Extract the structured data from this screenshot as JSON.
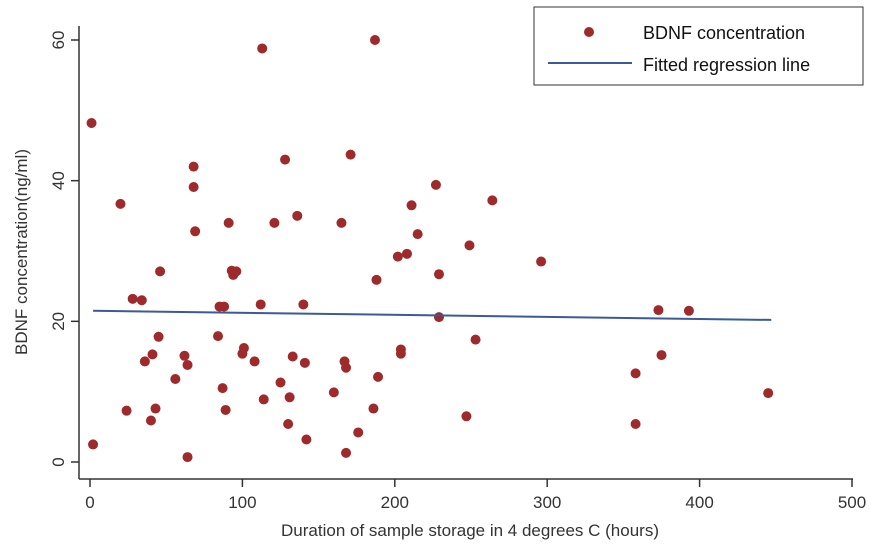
{
  "chart_data": {
    "type": "scatter",
    "xlabel": "Duration of sample storage in 4 degrees C (hours)",
    "ylabel": "BDNF concentration(ng/ml)",
    "xlim": [
      0,
      500
    ],
    "ylim": [
      0,
      60
    ],
    "xticks": [
      "0",
      "100",
      "200",
      "300",
      "400",
      "500"
    ],
    "yticks": [
      "0",
      "20",
      "40",
      "60"
    ],
    "grid": false,
    "legend_position": "top-right",
    "colors": {
      "points": "#9e2a2b",
      "line": "#3a5a98",
      "axis": "#333333"
    },
    "series": [
      {
        "name": "BDNF concentration",
        "kind": "scatter",
        "points": [
          [
            1,
            48.2
          ],
          [
            2,
            2.5
          ],
          [
            20,
            36.7
          ],
          [
            24,
            7.3
          ],
          [
            28,
            23.2
          ],
          [
            34,
            23.0
          ],
          [
            36,
            14.3
          ],
          [
            40,
            5.9
          ],
          [
            41,
            15.3
          ],
          [
            43,
            7.6
          ],
          [
            45,
            17.8
          ],
          [
            46,
            27.1
          ],
          [
            56,
            11.8
          ],
          [
            62,
            15.1
          ],
          [
            64,
            13.8
          ],
          [
            64,
            0.7
          ],
          [
            68,
            42.0
          ],
          [
            68,
            39.1
          ],
          [
            69,
            32.8
          ],
          [
            84,
            17.9
          ],
          [
            85,
            22.1
          ],
          [
            87,
            10.5
          ],
          [
            88,
            22.1
          ],
          [
            89,
            7.4
          ],
          [
            91,
            34.0
          ],
          [
            93,
            27.2
          ],
          [
            94,
            26.6
          ],
          [
            96,
            27.1
          ],
          [
            100,
            15.4
          ],
          [
            101,
            16.2
          ],
          [
            108,
            14.3
          ],
          [
            112,
            22.4
          ],
          [
            113,
            58.8
          ],
          [
            114,
            8.9
          ],
          [
            121,
            34.0
          ],
          [
            125,
            11.3
          ],
          [
            128,
            43.0
          ],
          [
            130,
            5.4
          ],
          [
            131,
            9.2
          ],
          [
            133,
            15.0
          ],
          [
            136,
            35.0
          ],
          [
            140,
            22.4
          ],
          [
            141,
            14.1
          ],
          [
            142,
            3.2
          ],
          [
            160,
            9.9
          ],
          [
            165,
            34.0
          ],
          [
            167,
            14.3
          ],
          [
            168,
            1.3
          ],
          [
            168,
            13.4
          ],
          [
            171,
            43.7
          ],
          [
            176,
            4.2
          ],
          [
            186,
            7.6
          ],
          [
            187,
            60.0
          ],
          [
            188,
            25.9
          ],
          [
            189,
            12.1
          ],
          [
            202,
            29.2
          ],
          [
            204,
            16.0
          ],
          [
            204,
            15.4
          ],
          [
            208,
            29.6
          ],
          [
            211,
            36.5
          ],
          [
            215,
            32.4
          ],
          [
            227,
            39.4
          ],
          [
            229,
            20.6
          ],
          [
            229,
            26.7
          ],
          [
            247,
            6.5
          ],
          [
            249,
            30.8
          ],
          [
            253,
            17.4
          ],
          [
            264,
            37.2
          ],
          [
            296,
            28.5
          ],
          [
            358,
            12.6
          ],
          [
            358,
            5.4
          ],
          [
            373,
            21.6
          ],
          [
            375,
            15.2
          ],
          [
            393,
            21.5
          ],
          [
            445,
            9.8
          ]
        ]
      },
      {
        "name": "Fitted regression line",
        "kind": "line",
        "points": [
          [
            2,
            21.5
          ],
          [
            447,
            20.2
          ]
        ]
      }
    ]
  }
}
